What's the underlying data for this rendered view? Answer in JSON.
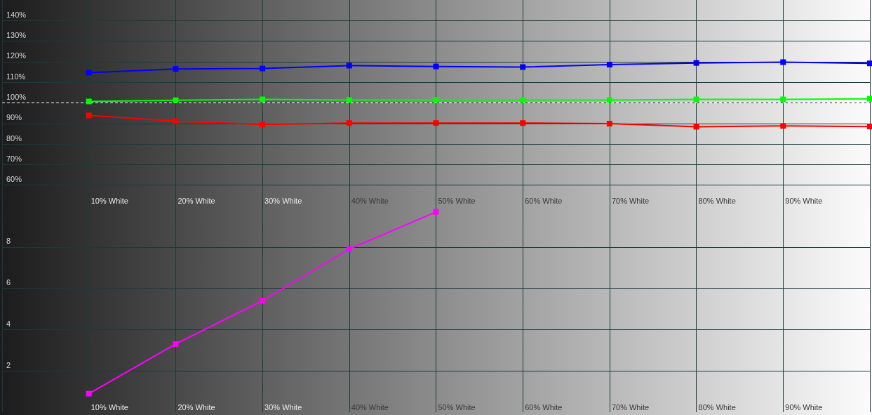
{
  "chart_data": [
    {
      "type": "line",
      "categories": [
        null,
        "10% White",
        "20% White",
        "30% White",
        "40% White",
        "50% White",
        "60% White",
        "70% White",
        "80% White",
        "90% White",
        null
      ],
      "series": [
        {
          "color": "#ff0000",
          "values": [
            null,
            93.9,
            91.1,
            89.5,
            90.2,
            90.2,
            90.2,
            89.9,
            88.4,
            88.8,
            88.5
          ]
        },
        {
          "color": "#00ff00",
          "values": [
            null,
            100.7,
            101.3,
            101.7,
            101.4,
            101.4,
            101.4,
            101.4,
            101.7,
            101.7,
            102.0
          ]
        },
        {
          "color": "#0000ff",
          "values": [
            null,
            114.7,
            116.5,
            116.7,
            118.1,
            117.7,
            117.4,
            118.6,
            119.4,
            119.8,
            119.2
          ]
        }
      ],
      "ylim": [
        50,
        150
      ],
      "yticks": [
        {
          "value": 60,
          "label": "60%"
        },
        {
          "value": 70,
          "label": "70%"
        },
        {
          "value": 80,
          "label": "80%"
        },
        {
          "value": 90,
          "label": "90%"
        },
        {
          "value": 100,
          "label": "100%"
        },
        {
          "value": 110,
          "label": "110%"
        },
        {
          "value": 120,
          "label": "120%"
        },
        {
          "value": 130,
          "label": "130%"
        },
        {
          "value": 140,
          "label": "140%"
        }
      ],
      "grid": true,
      "marker": "square",
      "ref_lines": [
        {
          "axis": "y",
          "value": 100,
          "color": "#ffffff",
          "line_style": "dashed"
        }
      ]
    },
    {
      "type": "line",
      "categories": [
        null,
        "10% White",
        "20% White",
        "30% White",
        "40% White",
        "50% White",
        "60% White",
        "70% White",
        "80% White",
        "90% White",
        null
      ],
      "series": [
        {
          "color": "#ff00ff",
          "values": [
            null,
            0.9,
            3.3,
            5.4,
            7.9,
            9.7,
            null,
            null,
            null,
            null,
            null
          ]
        }
      ],
      "ylim": [
        0,
        10
      ],
      "yticks": [
        2,
        4,
        6,
        8
      ],
      "grid": true,
      "marker": "square"
    }
  ]
}
